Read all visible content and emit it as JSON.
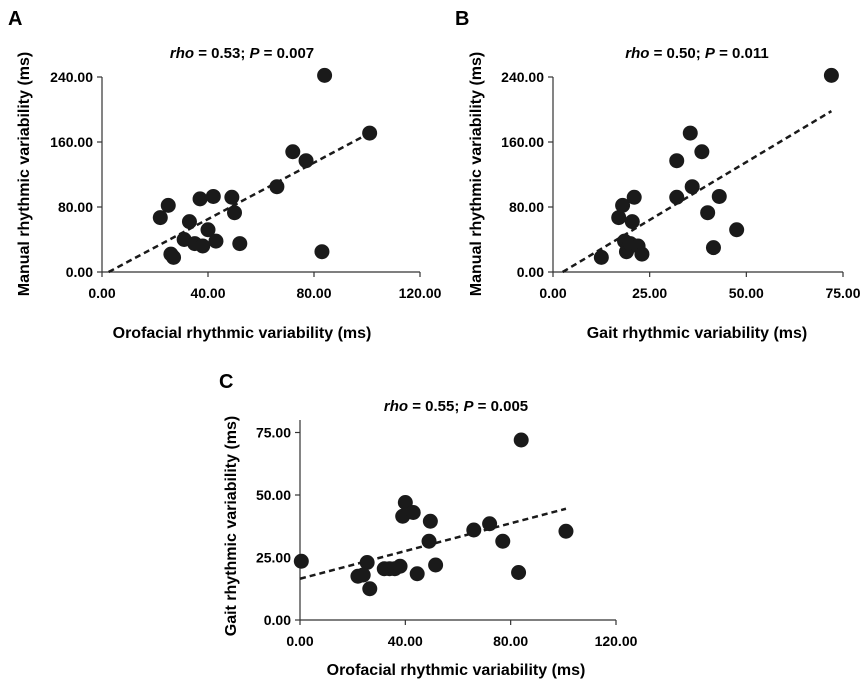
{
  "colors": {
    "points": "#1a1a1a",
    "axis": "#333333",
    "trend": "#1a1a1a"
  },
  "chart_data": [
    {
      "type": "scatter",
      "panel": "A",
      "title": {
        "r_symbol": "rho",
        "r_text": " = 0.53; ",
        "p_symbol": "P",
        "p_text": " = 0.007"
      },
      "xlabel": "Orofacial rhythmic variability (ms)",
      "ylabel": "Manual rhythmic variability (ms)",
      "xlim": [
        0,
        120
      ],
      "ylim": [
        0,
        240
      ],
      "xticks": [
        "0.00",
        "40.00",
        "80.00",
        "120.00"
      ],
      "xtick_values": [
        0,
        40,
        80,
        120
      ],
      "yticks": [
        "0.00",
        "80.00",
        "160.00",
        "240.00"
      ],
      "ytick_values": [
        0,
        80,
        160,
        240
      ],
      "trend": [
        [
          2.5,
          0
        ],
        [
          101,
          171
        ]
      ],
      "grid": false,
      "points": [
        [
          22,
          67
        ],
        [
          25,
          82
        ],
        [
          26,
          22
        ],
        [
          27,
          18
        ],
        [
          31,
          40
        ],
        [
          33,
          62
        ],
        [
          35,
          35
        ],
        [
          37,
          90
        ],
        [
          38,
          32
        ],
        [
          40,
          52
        ],
        [
          42,
          93
        ],
        [
          43,
          38
        ],
        [
          49,
          92
        ],
        [
          50,
          73
        ],
        [
          52,
          35
        ],
        [
          66,
          105
        ],
        [
          72,
          148
        ],
        [
          77,
          137
        ],
        [
          83,
          25
        ],
        [
          84,
          242
        ],
        [
          101,
          171
        ]
      ]
    },
    {
      "type": "scatter",
      "panel": "B",
      "title": {
        "r_symbol": "rho",
        "r_text": " = 0.50; ",
        "p_symbol": "P",
        "p_text": " = 0.011"
      },
      "xlabel": "Gait rhythmic variability (ms)",
      "ylabel": "Manual rhythmic variability (ms)",
      "xlim": [
        0,
        75
      ],
      "ylim": [
        0,
        240
      ],
      "xticks": [
        "0.00",
        "25.00",
        "50.00",
        "75.00"
      ],
      "xtick_values": [
        0,
        25,
        50,
        75
      ],
      "yticks": [
        "0.00",
        "80.00",
        "160.00",
        "240.00"
      ],
      "ytick_values": [
        0,
        80,
        160,
        240
      ],
      "trend": [
        [
          2.5,
          0
        ],
        [
          72,
          198
        ]
      ],
      "grid": false,
      "points": [
        [
          12.5,
          18
        ],
        [
          17,
          67
        ],
        [
          18,
          82
        ],
        [
          18.5,
          38
        ],
        [
          19,
          25
        ],
        [
          19.5,
          30
        ],
        [
          20,
          35
        ],
        [
          20.5,
          62
        ],
        [
          21,
          92
        ],
        [
          22,
          32
        ],
        [
          23,
          22
        ],
        [
          32,
          92
        ],
        [
          32,
          137
        ],
        [
          35.5,
          171
        ],
        [
          36,
          105
        ],
        [
          38.5,
          148
        ],
        [
          40,
          73
        ],
        [
          41.5,
          30
        ],
        [
          43,
          93
        ],
        [
          47.5,
          52
        ],
        [
          72,
          242
        ]
      ]
    },
    {
      "type": "scatter",
      "panel": "C",
      "title": {
        "r_symbol": "rho",
        "r_text": " = 0.55; ",
        "p_symbol": "P",
        "p_text": " = 0.005"
      },
      "xlabel": "Orofacial rhythmic variability (ms)",
      "ylabel": "Gait rhythmic variability (ms)",
      "xlim": [
        0,
        120
      ],
      "ylim": [
        0,
        80
      ],
      "xticks": [
        "0.00",
        "40.00",
        "80.00",
        "120.00"
      ],
      "xtick_values": [
        0,
        40,
        80,
        120
      ],
      "yticks": [
        "0.00",
        "25.00",
        "50.00",
        "75.00"
      ],
      "ytick_values": [
        0,
        25,
        50,
        75
      ],
      "trend": [
        [
          0,
          16.5
        ],
        [
          101,
          44.5
        ]
      ],
      "grid": false,
      "points": [
        [
          0.5,
          23.5
        ],
        [
          22,
          17.5
        ],
        [
          24,
          18
        ],
        [
          25.5,
          23
        ],
        [
          26.5,
          12.5
        ],
        [
          32,
          20.5
        ],
        [
          34,
          20.5
        ],
        [
          36,
          20.5
        ],
        [
          38,
          21.5
        ],
        [
          39,
          41.5
        ],
        [
          40,
          47
        ],
        [
          43,
          43
        ],
        [
          44.5,
          18.5
        ],
        [
          49,
          31.5
        ],
        [
          49.5,
          39.5
        ],
        [
          51.5,
          22
        ],
        [
          66,
          36
        ],
        [
          72,
          38.5
        ],
        [
          77,
          31.5
        ],
        [
          83,
          19
        ],
        [
          84,
          72
        ],
        [
          101,
          35.5
        ]
      ]
    }
  ]
}
